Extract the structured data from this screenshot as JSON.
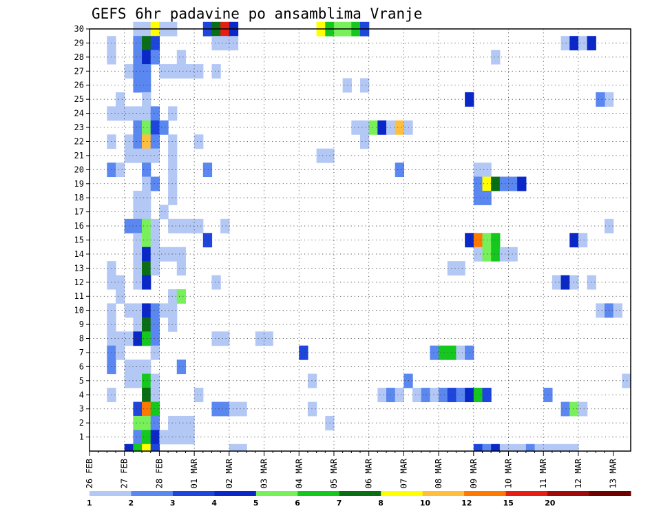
{
  "chart_data": {
    "type": "heatmap",
    "title": "GEFS 6hr padavine po ansamblima Vranje",
    "xlabel": "",
    "ylabel": "",
    "x_tick_labels": [
      "26 FEB",
      "27 FEB",
      "28 FEB",
      "01 MAR",
      "02 MAR",
      "03 MAR",
      "04 MAR",
      "05 MAR",
      "06 MAR",
      "07 MAR",
      "08 MAR",
      "09 MAR",
      "10 MAR",
      "11 MAR",
      "12 MAR",
      "13 MAR"
    ],
    "time_steps_per_day": 4,
    "n_time_steps": 62,
    "y_tick_labels": [
      "1",
      "2",
      "3",
      "4",
      "5",
      "6",
      "7",
      "8",
      "9",
      "10",
      "11",
      "12",
      "13",
      "14",
      "15",
      "16",
      "17",
      "18",
      "19",
      "20",
      "21",
      "22",
      "23",
      "24",
      "25",
      "26",
      "27",
      "28",
      "29",
      "30"
    ],
    "y_range": [
      0,
      30
    ],
    "grid": true,
    "colorbar": {
      "placement": "bottom",
      "tick_labels": [
        "1",
        "2",
        "3",
        "4",
        "5",
        "6",
        "7",
        "8",
        "10",
        "12",
        "15",
        "20"
      ],
      "colors": [
        "#b4c8f5",
        "#5a87f0",
        "#1e46dc",
        "#0a28c8",
        "#78f05a",
        "#14c81e",
        "#0a6e14",
        "#ffff00",
        "#ffbe3c",
        "#ff7800",
        "#e61e14",
        "#a00a0a",
        "#6e0000"
      ]
    },
    "cells": [
      [
        0,
        4,
        [
          5,
          6,
          7
        ],
        1
      ],
      [
        0,
        4,
        8,
        7
      ],
      [
        0,
        4,
        9,
        2
      ],
      [
        0,
        4,
        [
          10,
          11,
          12
        ],
        1
      ],
      [
        0,
        4,
        [
          14,
          15,
          16
        ],
        1
      ],
      [
        0,
        4,
        [
          17,
          18
        ],
        1
      ],
      [
        0,
        4,
        20,
        2
      ],
      [
        0,
        4,
        21,
        4
      ],
      [
        0,
        4,
        22,
        12
      ],
      [
        0,
        4,
        23,
        2
      ],
      [
        0,
        4,
        24,
        1
      ],
      [
        1,
        4,
        [
          5,
          6,
          7
        ],
        2
      ],
      [
        1,
        4,
        8,
        6
      ],
      [
        1,
        4,
        9,
        3
      ],
      [
        1,
        4,
        [
          10,
          11,
          12
        ],
        1
      ],
      [
        1,
        4,
        13,
        1
      ],
      [
        1,
        4,
        14,
        1
      ],
      [
        1,
        4,
        15,
        1
      ],
      [
        1,
        4,
        16,
        1
      ],
      [
        1,
        4,
        17,
        1
      ],
      [
        2,
        4,
        [
          5,
          6,
          7
        ],
        1
      ],
      [
        2,
        4,
        8,
        2
      ],
      [
        2,
        4,
        9,
        1
      ],
      [
        2,
        4,
        12,
        1
      ],
      [
        2,
        4,
        13,
        1
      ],
      [
        2,
        4,
        16,
        1
      ],
      [
        2,
        4,
        19,
        1
      ],
      [
        2,
        4,
        20,
        1
      ],
      [
        2,
        4,
        [
          22
        ],
        1
      ],
      [
        2,
        4,
        [
          23
        ],
        1
      ],
      [
        2,
        4,
        [
          24
        ],
        1
      ],
      [
        3,
        4,
        [
          7
        ],
        1
      ],
      [
        3,
        4,
        8,
        4
      ],
      [
        3,
        4,
        [
          9
        ],
        2
      ],
      [
        3,
        4,
        14,
        1
      ],
      [
        3,
        4,
        16,
        1
      ],
      [
        3,
        4,
        17,
        1
      ],
      [
        3,
        4,
        18,
        1
      ],
      [
        3,
        4,
        19,
        1
      ],
      [
        3,
        4,
        20,
        1
      ],
      [
        3,
        4,
        21,
        1
      ],
      [
        3,
        4,
        22,
        1
      ],
      [
        3,
        4,
        23,
        1
      ],
      [
        3,
        4,
        24,
        1
      ],
      [
        3,
        4,
        25,
        1
      ],
      [
        3,
        4,
        27,
        1
      ],
      [
        3,
        4,
        28,
        1
      ],
      [
        3,
        4,
        29,
        1
      ],
      [
        4,
        4,
        [
          5,
          6,
          7
        ],
        1
      ],
      [
        4,
        4,
        8,
        2
      ],
      [
        4,
        4,
        9,
        2
      ],
      [
        4,
        4,
        [
          12,
          13
        ],
        1
      ],
      [
        4,
        4,
        14,
        1
      ],
      [
        4,
        4,
        15,
        1
      ],
      [
        4,
        4,
        16,
        1
      ],
      [
        4,
        4,
        19,
        1
      ],
      [
        4,
        4,
        21,
        1
      ],
      [
        4,
        4,
        22,
        1
      ],
      [
        4,
        4,
        23,
        1
      ],
      [
        4,
        4,
        24,
        1
      ],
      [
        4,
        4,
        25,
        1
      ],
      [
        4,
        4,
        26,
        1
      ],
      [
        4,
        4,
        27,
        1
      ],
      [
        4,
        4,
        28,
        1
      ],
      [
        4,
        4,
        29,
        1
      ],
      [
        4,
        4,
        30,
        1
      ],
      [
        5,
        4,
        [
          5,
          6,
          7
        ],
        1
      ],
      [
        5,
        4,
        9,
        1
      ],
      [
        5,
        4,
        [
          12,
          13
        ],
        1
      ],
      [
        5,
        4,
        14,
        1
      ],
      [
        5,
        4,
        15,
        1
      ],
      [
        5,
        4,
        16,
        1
      ],
      [
        5,
        4,
        17,
        1
      ],
      [
        5,
        4,
        18,
        1
      ],
      [
        5,
        4,
        19,
        1
      ],
      [
        5,
        4,
        20,
        1
      ],
      [
        5,
        4,
        21,
        1
      ],
      [
        5,
        4,
        22,
        1
      ],
      [
        5,
        4,
        23,
        1
      ],
      [
        5,
        4,
        24,
        1
      ],
      [
        5,
        4,
        25,
        1
      ],
      [
        5,
        4,
        26,
        1
      ],
      [
        5,
        4,
        27,
        1
      ],
      [
        5,
        4,
        28,
        1
      ],
      [
        5,
        4,
        29,
        1
      ],
      [
        5,
        4,
        30,
        1
      ]
    ]
  }
}
